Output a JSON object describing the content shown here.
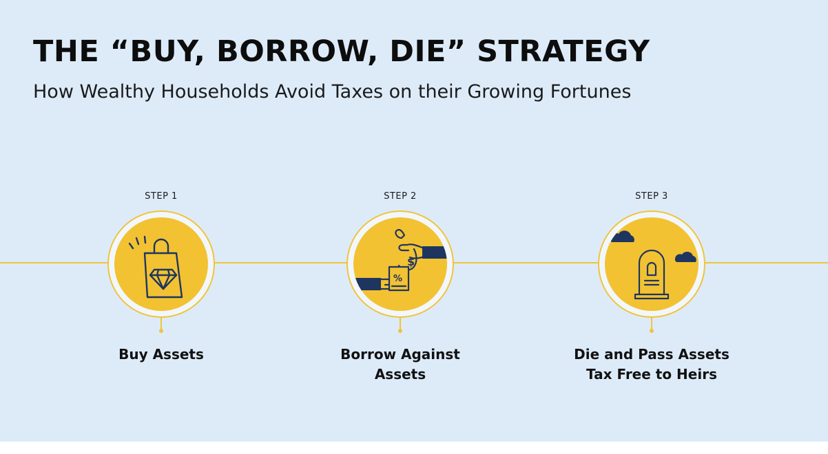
{
  "header": {
    "title": "THE “BUY, BORROW, DIE” STRATEGY",
    "subtitle": "How Wealthy Households Avoid Taxes on their Growing Fortunes"
  },
  "steps": [
    {
      "label": "STEP 1",
      "title_lines": [
        "Buy Assets"
      ],
      "icon": "shopping-bag-diamond-icon"
    },
    {
      "label": "STEP 2",
      "title_lines": [
        "Borrow Against",
        "Assets"
      ],
      "icon": "loan-exchange-icon"
    },
    {
      "label": "STEP 3",
      "title_lines": [
        "Die and Pass Assets",
        "Tax Free to Heirs"
      ],
      "icon": "gravestone-icon"
    }
  ],
  "colors": {
    "background": "#ddebf9",
    "accent_yellow": "#f2c232",
    "navy": "#1e3560",
    "text": "#111111"
  }
}
